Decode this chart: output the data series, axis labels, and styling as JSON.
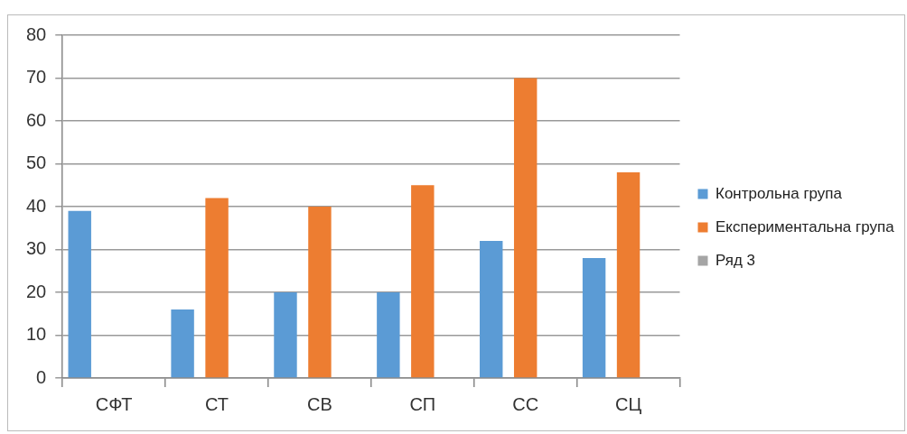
{
  "chart_data": {
    "type": "bar",
    "categories": [
      "СФТ",
      "СТ",
      "СВ",
      "СП",
      "СС",
      "СЦ"
    ],
    "series": [
      {
        "name": "Контрольна група",
        "color": "#5b9bd5",
        "values": [
          39,
          16,
          20,
          20,
          32,
          28
        ]
      },
      {
        "name": "Експериментальна група",
        "color": "#ed7d31",
        "values": [
          null,
          42,
          40,
          45,
          70,
          48
        ]
      },
      {
        "name": "Ряд 3",
        "color": "#a5a5a5",
        "values": [
          null,
          null,
          null,
          null,
          null,
          null
        ]
      }
    ],
    "ylim": [
      0,
      80
    ],
    "yticks": [
      0,
      10,
      20,
      30,
      40,
      50,
      60,
      70,
      80
    ],
    "grid": "y",
    "legend": "right"
  }
}
